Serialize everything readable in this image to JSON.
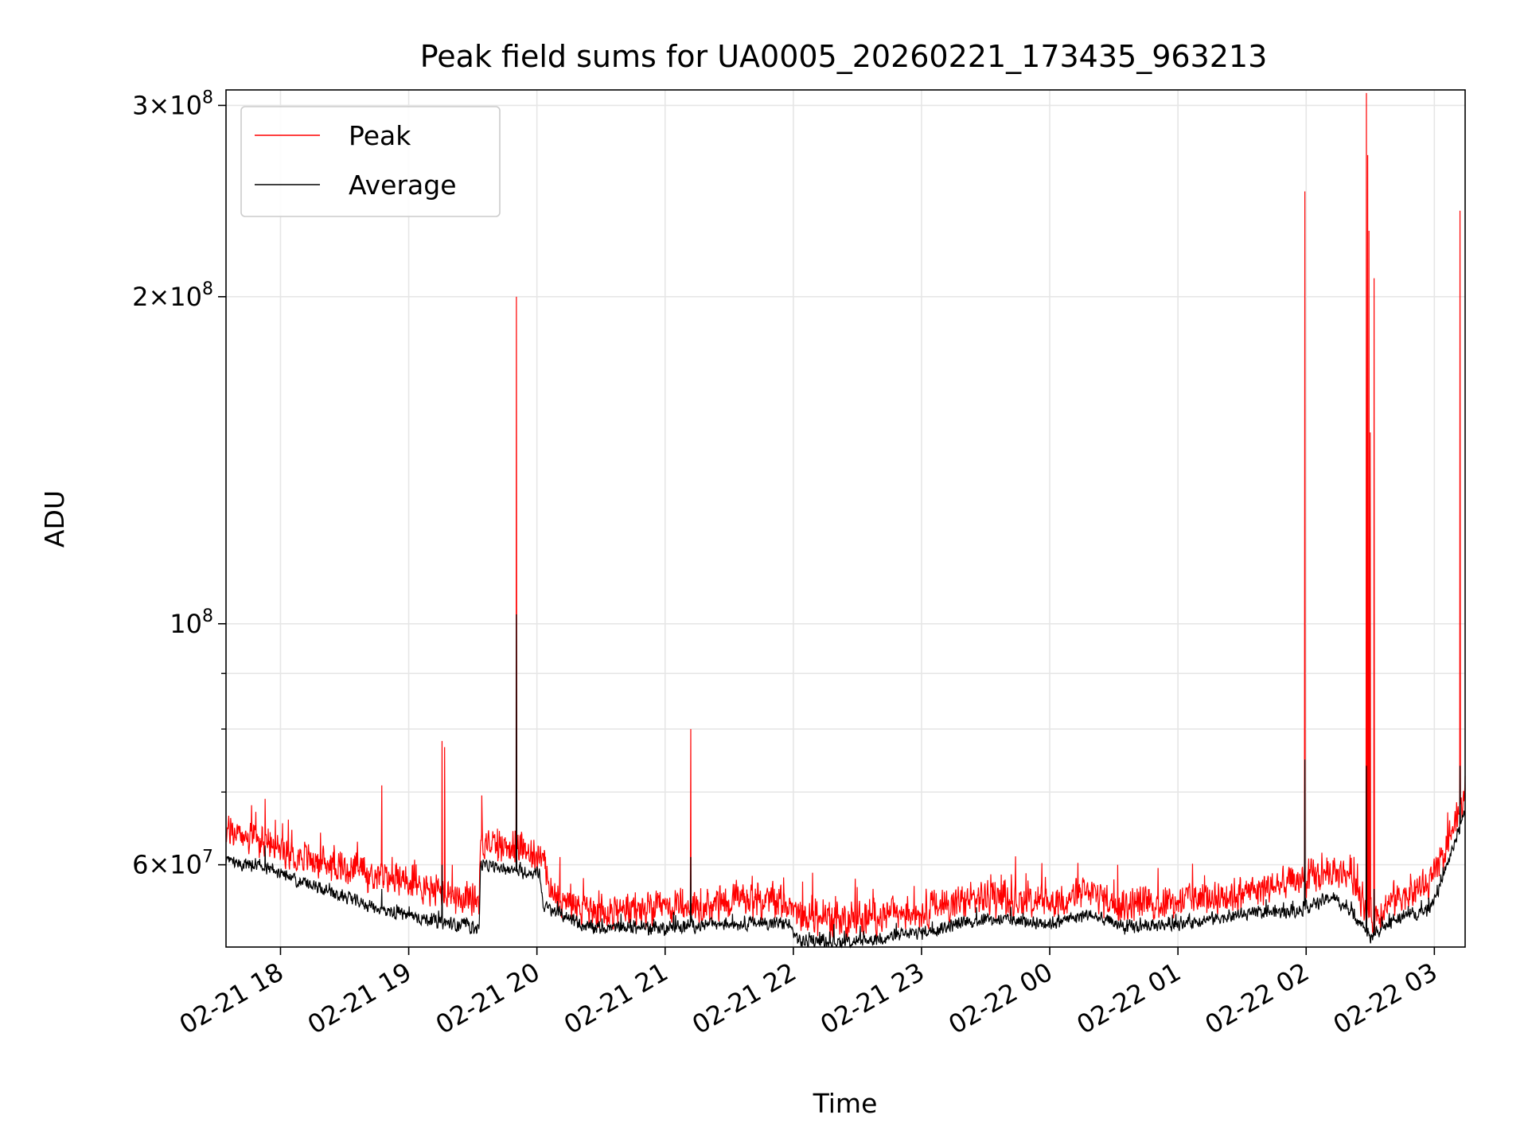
{
  "chart_data": {
    "type": "line",
    "title": "Peak field sums for UA0005_20260221_173435_963213",
    "xlabel": "Time",
    "ylabel": "ADU",
    "yscale": "log",
    "xlim": [
      17.575,
      27.24
    ],
    "ylim": [
      50400000,
      310000000
    ],
    "grid": true,
    "legend_position": "top-left",
    "x_ticks": [
      {
        "value": 18,
        "label": "02-21 18"
      },
      {
        "value": 19,
        "label": "02-21 19"
      },
      {
        "value": 20,
        "label": "02-21 20"
      },
      {
        "value": 21,
        "label": "02-21 21"
      },
      {
        "value": 22,
        "label": "02-21 22"
      },
      {
        "value": 23,
        "label": "02-21 23"
      },
      {
        "value": 24,
        "label": "02-22 00"
      },
      {
        "value": 25,
        "label": "02-22 01"
      },
      {
        "value": 26,
        "label": "02-22 02"
      },
      {
        "value": 27,
        "label": "02-22 03"
      }
    ],
    "y_major_ticks": [
      {
        "value": 60000000,
        "mantissa": "6",
        "exponent": "7"
      },
      {
        "value": 100000000,
        "mantissa": "",
        "exponent": "8"
      },
      {
        "value": 200000000,
        "mantissa": "2",
        "exponent": "8"
      },
      {
        "value": 300000000,
        "mantissa": "3",
        "exponent": "8"
      }
    ],
    "y_minor_ticks": [
      70000000,
      80000000,
      90000000
    ],
    "y_tick_times": "×",
    "y_tick_base": "10",
    "series": [
      {
        "name": "Peak",
        "color": "#ff0000",
        "noise": 2500000,
        "baseline": [
          [
            17.575,
            64500000
          ],
          [
            17.9,
            62500000
          ],
          [
            18.3,
            60500000
          ],
          [
            18.8,
            58500000
          ],
          [
            19.3,
            56500000
          ],
          [
            19.55,
            56000000
          ],
          [
            19.56,
            63000000
          ],
          [
            19.9,
            62000000
          ],
          [
            20.05,
            61000000
          ],
          [
            20.1,
            56500000
          ],
          [
            20.4,
            54500000
          ],
          [
            21.0,
            54500000
          ],
          [
            21.5,
            55500000
          ],
          [
            21.95,
            55500000
          ],
          [
            22.05,
            53500000
          ],
          [
            22.5,
            53500000
          ],
          [
            23.0,
            54500000
          ],
          [
            23.5,
            56000000
          ],
          [
            24.0,
            55500000
          ],
          [
            24.3,
            56500000
          ],
          [
            24.6,
            55000000
          ],
          [
            25.0,
            55500000
          ],
          [
            25.5,
            56500000
          ],
          [
            25.95,
            58000000
          ],
          [
            26.2,
            59000000
          ],
          [
            26.35,
            59000000
          ],
          [
            26.5,
            53500000
          ],
          [
            26.7,
            56000000
          ],
          [
            26.95,
            57500000
          ],
          [
            27.05,
            60000000
          ],
          [
            27.24,
            69500000
          ]
        ],
        "spikes": [
          [
            17.88,
            69000000
          ],
          [
            17.96,
            66000000
          ],
          [
            18.6,
            63000000
          ],
          [
            18.79,
            71000000
          ],
          [
            19.26,
            78000000
          ],
          [
            19.28,
            77000000
          ],
          [
            19.34,
            60000000
          ],
          [
            19.57,
            69500000
          ],
          [
            19.84,
            200000000
          ],
          [
            19.83,
            64500000
          ],
          [
            20.18,
            61000000
          ],
          [
            21.2,
            80000000
          ],
          [
            22.15,
            59000000
          ],
          [
            24.53,
            60000000
          ],
          [
            25.99,
            250000000
          ],
          [
            26.47,
            308000000
          ],
          [
            26.48,
            270000000
          ],
          [
            26.49,
            230000000
          ],
          [
            26.5,
            150000000
          ],
          [
            26.53,
            208000000
          ],
          [
            27.2,
            240000000
          ]
        ]
      },
      {
        "name": "Average",
        "color": "#000000",
        "noise": 900000,
        "baseline": [
          [
            17.575,
            60500000
          ],
          [
            17.9,
            59500000
          ],
          [
            18.3,
            57000000
          ],
          [
            18.8,
            54500000
          ],
          [
            19.3,
            53000000
          ],
          [
            19.55,
            52500000
          ],
          [
            19.56,
            60000000
          ],
          [
            19.9,
            59000000
          ],
          [
            20.02,
            59000000
          ],
          [
            20.05,
            55000000
          ],
          [
            20.4,
            52500000
          ],
          [
            21.0,
            52500000
          ],
          [
            21.5,
            53000000
          ],
          [
            21.95,
            53000000
          ],
          [
            22.05,
            51000000
          ],
          [
            22.5,
            51000000
          ],
          [
            23.0,
            52000000
          ],
          [
            23.5,
            53500000
          ],
          [
            24.0,
            53000000
          ],
          [
            24.3,
            54000000
          ],
          [
            24.6,
            52500000
          ],
          [
            25.0,
            53000000
          ],
          [
            25.5,
            54000000
          ],
          [
            25.95,
            54500000
          ],
          [
            26.2,
            56000000
          ],
          [
            26.35,
            54500000
          ],
          [
            26.5,
            51500000
          ],
          [
            26.7,
            53500000
          ],
          [
            26.95,
            54500000
          ],
          [
            27.05,
            57500000
          ],
          [
            27.24,
            67000000
          ]
        ],
        "spikes": [
          [
            17.88,
            62500000
          ],
          [
            18.79,
            57000000
          ],
          [
            19.26,
            60000000
          ],
          [
            19.84,
            102000000
          ],
          [
            21.2,
            61000000
          ],
          [
            25.99,
            75000000
          ],
          [
            26.47,
            74000000
          ],
          [
            26.53,
            57000000
          ],
          [
            27.2,
            74000000
          ]
        ]
      }
    ]
  }
}
